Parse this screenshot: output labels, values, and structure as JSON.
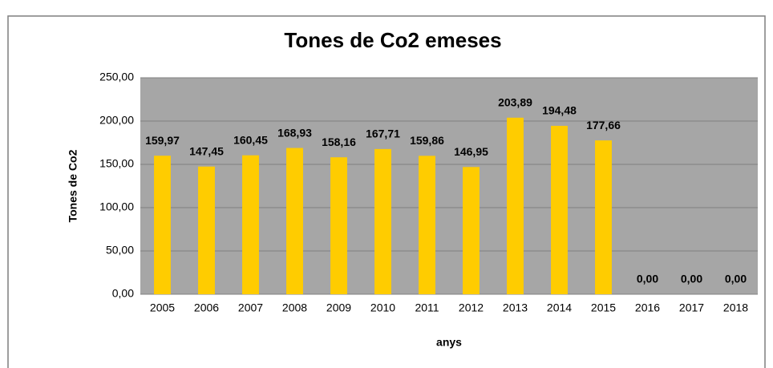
{
  "chart_data": {
    "type": "bar",
    "title": "Tones de Co2 emeses",
    "x_label": "anys",
    "y_label": "Tones de Co2",
    "categories": [
      "2005",
      "2006",
      "2007",
      "2008",
      "2009",
      "2010",
      "2011",
      "2012",
      "2013",
      "2014",
      "2015",
      "2016",
      "2017",
      "2018"
    ],
    "values": [
      159.97,
      147.45,
      160.45,
      168.93,
      158.16,
      167.71,
      159.86,
      146.95,
      203.89,
      194.48,
      177.66,
      0,
      0,
      0
    ],
    "value_labels": [
      "159,97",
      "147,45",
      "160,45",
      "168,93",
      "158,16",
      "167,71",
      "159,86",
      "146,95",
      "203,89",
      "194,48",
      "177,66",
      "0,00",
      "0,00",
      "0,00"
    ],
    "color": "#ffcc00",
    "ylim": [
      0,
      250
    ],
    "yticks": [
      {
        "value": 0,
        "label": "0,00"
      },
      {
        "value": 50,
        "label": "50,00"
      },
      {
        "value": 100,
        "label": "100,00"
      },
      {
        "value": 150,
        "label": "150,00"
      },
      {
        "value": 200,
        "label": "200,00"
      },
      {
        "value": 250,
        "label": "250,00"
      }
    ],
    "grid": true
  }
}
